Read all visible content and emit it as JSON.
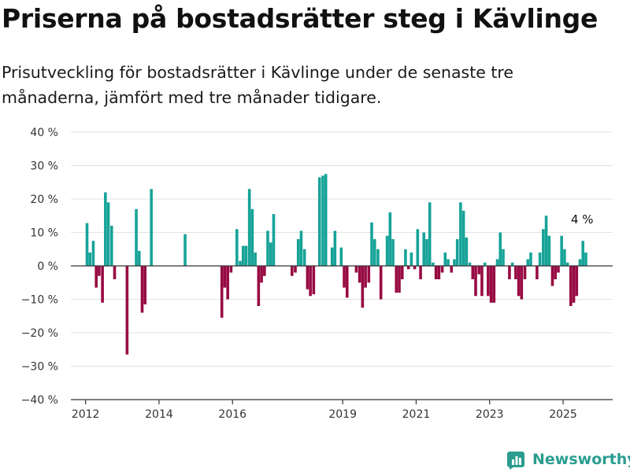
{
  "title": "Priserna på bostadsrätter steg i Kävlinge",
  "subtitle": "Prisutveckling för bostadsrätter i Kävlinge under de senaste tre månaderna, jämfört med tre månader tidigare.",
  "brand": "Newsworthy",
  "colors": {
    "positive": "#17a398",
    "negative": "#970a42",
    "grid": "#e3e3e3",
    "axis": "#333333",
    "brand": "#2a9d8f"
  },
  "chart_data": {
    "type": "bar",
    "ylim": [
      -40,
      40
    ],
    "yticks": [
      40,
      30,
      20,
      10,
      0,
      -10,
      -20,
      -30,
      -40
    ],
    "ytick_labels": [
      "40 %",
      "30 %",
      "20 %",
      "10 %",
      "0 %",
      "−10 %",
      "−20 %",
      "−30 %",
      "−40 %"
    ],
    "xticks": [
      2012,
      2014,
      2016,
      2019,
      2021,
      2023,
      2025
    ],
    "xlim": [
      2011.6,
      2026.35
    ],
    "grid": true,
    "annotation": {
      "text": "4 %",
      "x": 2025.52,
      "y": 4
    },
    "series": [
      {
        "values": [
          [
            2012.04,
            12.8
          ],
          [
            2012.12,
            4.0
          ],
          [
            2012.21,
            7.5
          ],
          [
            2012.29,
            -6.5
          ],
          [
            2012.37,
            -3.0
          ],
          [
            2012.46,
            -11.0
          ],
          [
            2012.54,
            22.0
          ],
          [
            2012.62,
            19.0
          ],
          [
            2012.71,
            12.0
          ],
          [
            2012.79,
            -4.0
          ],
          [
            2013.13,
            -26.5
          ],
          [
            2013.38,
            17.0
          ],
          [
            2013.46,
            4.5
          ],
          [
            2013.54,
            -14.0
          ],
          [
            2013.62,
            -11.5
          ],
          [
            2013.79,
            23.0
          ],
          [
            2014.71,
            9.5
          ],
          [
            2015.71,
            -15.5
          ],
          [
            2015.79,
            -6.5
          ],
          [
            2015.87,
            -10.0
          ],
          [
            2015.96,
            -2.0
          ],
          [
            2016.12,
            11.0
          ],
          [
            2016.21,
            1.5
          ],
          [
            2016.29,
            6.0
          ],
          [
            2016.37,
            6.0
          ],
          [
            2016.46,
            23.0
          ],
          [
            2016.54,
            17.0
          ],
          [
            2016.62,
            4.0
          ],
          [
            2016.71,
            -12.0
          ],
          [
            2016.79,
            -5.0
          ],
          [
            2016.87,
            -3.0
          ],
          [
            2016.96,
            10.5
          ],
          [
            2017.04,
            7.0
          ],
          [
            2017.12,
            15.5
          ],
          [
            2017.62,
            -3.0
          ],
          [
            2017.71,
            -2.0
          ],
          [
            2017.79,
            8.0
          ],
          [
            2017.87,
            10.5
          ],
          [
            2017.96,
            5.0
          ],
          [
            2018.04,
            -7.0
          ],
          [
            2018.12,
            -9.0
          ],
          [
            2018.21,
            -8.5
          ],
          [
            2018.37,
            26.5
          ],
          [
            2018.46,
            27.0
          ],
          [
            2018.54,
            27.5
          ],
          [
            2018.71,
            5.5
          ],
          [
            2018.79,
            10.5
          ],
          [
            2018.96,
            5.5
          ],
          [
            2019.04,
            -6.5
          ],
          [
            2019.12,
            -9.5
          ],
          [
            2019.37,
            -2.0
          ],
          [
            2019.46,
            -5.0
          ],
          [
            2019.54,
            -12.5
          ],
          [
            2019.62,
            -6.5
          ],
          [
            2019.71,
            -5.0
          ],
          [
            2019.79,
            13.0
          ],
          [
            2019.87,
            8.0
          ],
          [
            2019.96,
            5.0
          ],
          [
            2020.04,
            -10.0
          ],
          [
            2020.21,
            9.0
          ],
          [
            2020.29,
            16.0
          ],
          [
            2020.37,
            8.0
          ],
          [
            2020.46,
            -8.0
          ],
          [
            2020.54,
            -8.0
          ],
          [
            2020.62,
            -4.0
          ],
          [
            2020.71,
            5.0
          ],
          [
            2020.79,
            -1.0
          ],
          [
            2020.87,
            4.0
          ],
          [
            2020.96,
            -1.0
          ],
          [
            2021.04,
            11.0
          ],
          [
            2021.12,
            -4.0
          ],
          [
            2021.21,
            10.0
          ],
          [
            2021.29,
            8.0
          ],
          [
            2021.37,
            19.0
          ],
          [
            2021.46,
            1.0
          ],
          [
            2021.54,
            -4.0
          ],
          [
            2021.62,
            -4.0
          ],
          [
            2021.71,
            -2.0
          ],
          [
            2021.79,
            4.0
          ],
          [
            2021.87,
            2.0
          ],
          [
            2021.96,
            -2.0
          ],
          [
            2022.04,
            2.0
          ],
          [
            2022.12,
            8.0
          ],
          [
            2022.21,
            19.0
          ],
          [
            2022.29,
            16.5
          ],
          [
            2022.37,
            8.5
          ],
          [
            2022.46,
            1.0
          ],
          [
            2022.54,
            -4.0
          ],
          [
            2022.62,
            -9.0
          ],
          [
            2022.71,
            -2.5
          ],
          [
            2022.79,
            -9.0
          ],
          [
            2022.87,
            1.0
          ],
          [
            2022.96,
            -9.0
          ],
          [
            2023.04,
            -11.0
          ],
          [
            2023.12,
            -11.0
          ],
          [
            2023.21,
            2.0
          ],
          [
            2023.29,
            10.0
          ],
          [
            2023.37,
            5.0
          ],
          [
            2023.54,
            -4.0
          ],
          [
            2023.62,
            1.0
          ],
          [
            2023.71,
            -4.0
          ],
          [
            2023.79,
            -9.0
          ],
          [
            2023.87,
            -10.0
          ],
          [
            2023.96,
            -4.0
          ],
          [
            2024.04,
            2.0
          ],
          [
            2024.12,
            4.0
          ],
          [
            2024.29,
            -4.0
          ],
          [
            2024.37,
            4.0
          ],
          [
            2024.46,
            11.0
          ],
          [
            2024.54,
            15.0
          ],
          [
            2024.62,
            9.0
          ],
          [
            2024.71,
            -6.0
          ],
          [
            2024.79,
            -4.0
          ],
          [
            2024.87,
            -2.0
          ],
          [
            2024.96,
            9.0
          ],
          [
            2025.04,
            5.0
          ],
          [
            2025.12,
            1.0
          ],
          [
            2025.21,
            -12.0
          ],
          [
            2025.29,
            -11.0
          ],
          [
            2025.37,
            -9.0
          ],
          [
            2025.46,
            2.0
          ],
          [
            2025.54,
            7.5
          ],
          [
            2025.62,
            4.0
          ]
        ]
      }
    ]
  }
}
